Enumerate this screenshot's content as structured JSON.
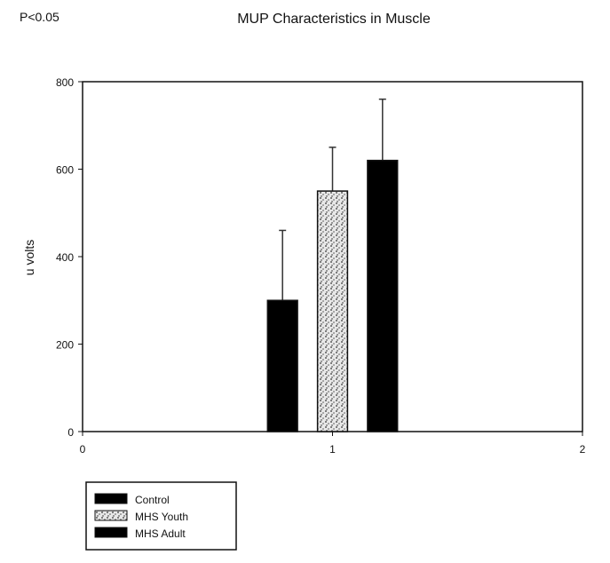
{
  "annotation": "P<0.05",
  "chart_data": {
    "type": "bar",
    "title": "MUP Characteristics in Muscle",
    "xlabel": "",
    "ylabel": "u volts",
    "xlim": [
      0,
      2
    ],
    "ylim": [
      0,
      800
    ],
    "xticks": [
      "0",
      "1",
      "2"
    ],
    "yticks": [
      "0",
      "200",
      "400",
      "600",
      "800"
    ],
    "grid": false,
    "legend_position": "bottom-left",
    "series": [
      {
        "name": "Control",
        "x": 0.8,
        "value": 300,
        "error": 160,
        "fill": "#000000"
      },
      {
        "name": "MHS Youth",
        "x": 1.0,
        "value": 550,
        "error": 100,
        "fill": "stipple"
      },
      {
        "name": "MHS Adult",
        "x": 1.2,
        "value": 620,
        "error": 140,
        "fill": "#000000"
      }
    ]
  }
}
